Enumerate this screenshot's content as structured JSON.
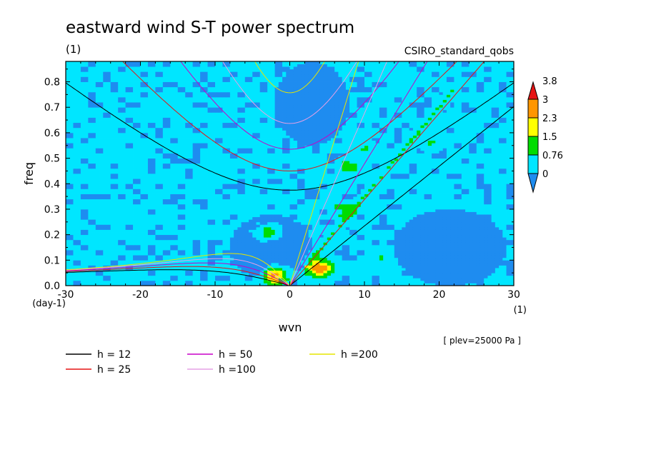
{
  "chart_data": {
    "type": "heatmap",
    "title": "eastward wind S-T power spectrum",
    "subtitle_left": "(1)",
    "subtitle_right": "CSIRO_standard_qobs",
    "xlabel": "wvn",
    "ylabel": "freq",
    "y_unit": "(day-1)",
    "x_unit": "(1)",
    "xlim": [
      -30,
      30
    ],
    "ylim": [
      0,
      0.88
    ],
    "x_ticks": [
      -30,
      -20,
      -10,
      0,
      10,
      20,
      30
    ],
    "x_tick_labels": [
      "-30",
      "-20",
      "-10",
      "0",
      "10",
      "20",
      "30"
    ],
    "y_ticks": [
      0,
      0.1,
      0.2,
      0.3,
      0.4,
      0.5,
      0.6,
      0.7,
      0.8
    ],
    "y_tick_labels": [
      "0.0",
      "0.1",
      "0.2",
      "0.3",
      "0.4",
      "0.5",
      "0.6",
      "0.7",
      "0.8"
    ],
    "colorbar": {
      "levels": [
        0,
        0.76,
        1.5,
        2.3,
        3,
        3.8
      ],
      "labels": [
        "0",
        "0.76",
        "1.5",
        "2.3",
        "3",
        "3.8"
      ],
      "colors": [
        "#1e8cf0",
        "#00e6ff",
        "#00dc00",
        "#ffff00",
        "#ff9600",
        "#e61414"
      ]
    },
    "annotation": "[ plev=25000 Pa ]",
    "series": [
      {
        "name": "h = 12",
        "equivalent_depth": 12,
        "color": "#000000"
      },
      {
        "name": "h = 25",
        "equivalent_depth": 25,
        "color": "#e61414"
      },
      {
        "name": "h = 50",
        "equivalent_depth": 50,
        "color": "#c800c8"
      },
      {
        "name": "h =100",
        "equivalent_depth": 100,
        "color": "#e6a0e6"
      },
      {
        "name": "h =200",
        "equivalent_depth": 200,
        "color": "#e6e600"
      }
    ],
    "field": {
      "background_value": 1.0,
      "low_regions": [
        {
          "x": [
            -8,
            3
          ],
          "y": [
            0.02,
            0.28
          ]
        },
        {
          "x": [
            14,
            29
          ],
          "y": [
            0.0,
            0.3
          ]
        },
        {
          "x": [
            -2,
            8
          ],
          "y": [
            0.55,
            0.88
          ]
        }
      ],
      "peaks": [
        {
          "x": 4,
          "y": 0.07,
          "value": 3.8
        },
        {
          "x": -2,
          "y": 0.04,
          "value": 3.8
        },
        {
          "x": -3,
          "y": 0.21,
          "value": 2.5
        },
        {
          "x": 7,
          "y": 0.3,
          "value": 1.8
        },
        {
          "x": 8,
          "y": 0.47,
          "value": 1.8
        },
        {
          "x": 10,
          "y": 0.54,
          "value": 1.6
        },
        {
          "x": 19,
          "y": 0.56,
          "value": 1.6
        },
        {
          "x": 12,
          "y": 0.11,
          "value": 1.6
        }
      ]
    }
  }
}
